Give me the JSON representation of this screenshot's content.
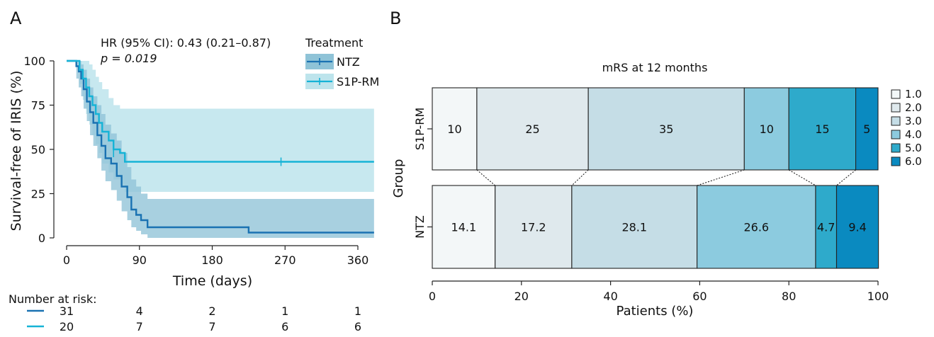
{
  "colors": {
    "ntz": "#1a72b2",
    "s1p": "#16b3d6",
    "ntz_band": "#8fc3d7",
    "s1p_band": "#bde4ec",
    "axis": "#222222"
  },
  "panel_a": {
    "letter": "A",
    "hr_text": "HR (95% CI): 0.43 (0.21–0.87)",
    "p_text": "p = 0.019",
    "legend_title": "Treatment",
    "risk_title": "Number at risk:"
  },
  "panel_b": {
    "letter": "B",
    "title": "mRS at 12 months"
  },
  "chart_data": [
    {
      "type": "line",
      "subtype": "kaplan-meier",
      "xlabel": "Time (days)",
      "ylabel": "Survival-free of IRIS (%)",
      "xlim": [
        -5,
        380
      ],
      "ylim": [
        -3,
        103
      ],
      "x_ticks": [
        0,
        90,
        180,
        270,
        360
      ],
      "y_ticks": [
        0,
        25,
        50,
        75,
        100
      ],
      "legend_title": "Treatment",
      "legend_position": "top-right",
      "series": [
        {
          "name": "NTZ",
          "color": "#1a72b2",
          "steps": [
            [
              0,
              100
            ],
            [
              10,
              100
            ],
            [
              12,
              97
            ],
            [
              15,
              94
            ],
            [
              18,
              90
            ],
            [
              21,
              84
            ],
            [
              25,
              77
            ],
            [
              29,
              71
            ],
            [
              33,
              65
            ],
            [
              38,
              58
            ],
            [
              43,
              52
            ],
            [
              48,
              45
            ],
            [
              55,
              42
            ],
            [
              62,
              35
            ],
            [
              68,
              29
            ],
            [
              75,
              23
            ],
            [
              80,
              16
            ],
            [
              86,
              13
            ],
            [
              92,
              10
            ],
            [
              100,
              6
            ],
            [
              225,
              3
            ],
            [
              380,
              3
            ]
          ],
          "ci_band": [
            [
              0,
              100,
              100
            ],
            [
              10,
              100,
              100
            ],
            [
              12,
              90,
              100
            ],
            [
              15,
              85,
              100
            ],
            [
              18,
              80,
              98
            ],
            [
              21,
              73,
              95
            ],
            [
              25,
              66,
              90
            ],
            [
              29,
              58,
              85
            ],
            [
              33,
              52,
              80
            ],
            [
              38,
              45,
              75
            ],
            [
              43,
              38,
              70
            ],
            [
              48,
              32,
              64
            ],
            [
              55,
              27,
              59
            ],
            [
              62,
              21,
              55
            ],
            [
              68,
              15,
              48
            ],
            [
              75,
              10,
              40
            ],
            [
              80,
              6,
              33
            ],
            [
              86,
              4,
              29
            ],
            [
              92,
              2,
              25
            ],
            [
              100,
              0,
              22
            ],
            [
              225,
              0,
              22
            ],
            [
              380,
              0,
              22
            ]
          ],
          "censor_marks": []
        },
        {
          "name": "S1P-RM",
          "color": "#16b3d6",
          "steps": [
            [
              0,
              100
            ],
            [
              12,
              100
            ],
            [
              16,
              95
            ],
            [
              20,
              90
            ],
            [
              24,
              85
            ],
            [
              28,
              80
            ],
            [
              32,
              75
            ],
            [
              36,
              70
            ],
            [
              40,
              65
            ],
            [
              44,
              60
            ],
            [
              52,
              55
            ],
            [
              58,
              50
            ],
            [
              66,
              48
            ],
            [
              72,
              43
            ],
            [
              380,
              43
            ]
          ],
          "ci_band": [
            [
              0,
              100,
              100
            ],
            [
              12,
              100,
              100
            ],
            [
              16,
              87,
              100
            ],
            [
              20,
              78,
              100
            ],
            [
              24,
              70,
              100
            ],
            [
              28,
              64,
              98
            ],
            [
              32,
              58,
              95
            ],
            [
              36,
              53,
              91
            ],
            [
              40,
              48,
              88
            ],
            [
              44,
              42,
              84
            ],
            [
              52,
              37,
              79
            ],
            [
              58,
              33,
              75
            ],
            [
              66,
              30,
              73
            ],
            [
              72,
              26,
              73
            ],
            [
              380,
              26,
              73
            ]
          ],
          "censor_marks": [
            [
              58,
              48
            ],
            [
              265,
              43
            ]
          ]
        }
      ],
      "risk_table": {
        "times": [
          0,
          90,
          180,
          270,
          360
        ],
        "rows": [
          {
            "name": "NTZ",
            "color": "#1a72b2",
            "values": [
              "31",
              "4",
              "2",
              "1",
              "1"
            ]
          },
          {
            "name": "S1P-RM",
            "color": "#16b3d6",
            "values": [
              "20",
              "7",
              "7",
              "6",
              "6"
            ]
          }
        ]
      }
    },
    {
      "type": "bar",
      "subtype": "stacked-horizontal-100",
      "title": "mRS at 12 months",
      "xlabel": "Patients (%)",
      "ylabel": "Group",
      "xlim": [
        0,
        100
      ],
      "x_ticks": [
        0,
        20,
        40,
        60,
        80,
        100
      ],
      "legend_position": "right",
      "levels": [
        {
          "label": "1.0",
          "color": "#f3f7f8"
        },
        {
          "label": "2.0",
          "color": "#dfe9ed"
        },
        {
          "label": "3.0",
          "color": "#c5dde6"
        },
        {
          "label": "4.0",
          "color": "#8ccbdf"
        },
        {
          "label": "5.0",
          "color": "#2eaacb"
        },
        {
          "label": "6.0",
          "color": "#0a8ac0"
        }
      ],
      "groups": [
        {
          "name": "S1P-RM",
          "values": [
            10,
            25,
            35,
            10,
            15,
            5
          ],
          "labels": [
            "10",
            "25",
            "35",
            "10",
            "15",
            "5"
          ]
        },
        {
          "name": "NTZ",
          "values": [
            14.1,
            17.2,
            28.1,
            26.6,
            4.7,
            9.4
          ],
          "labels": [
            "14.1",
            "17.2",
            "28.1",
            "26.6",
            "4.7",
            "9.4"
          ]
        }
      ]
    }
  ]
}
